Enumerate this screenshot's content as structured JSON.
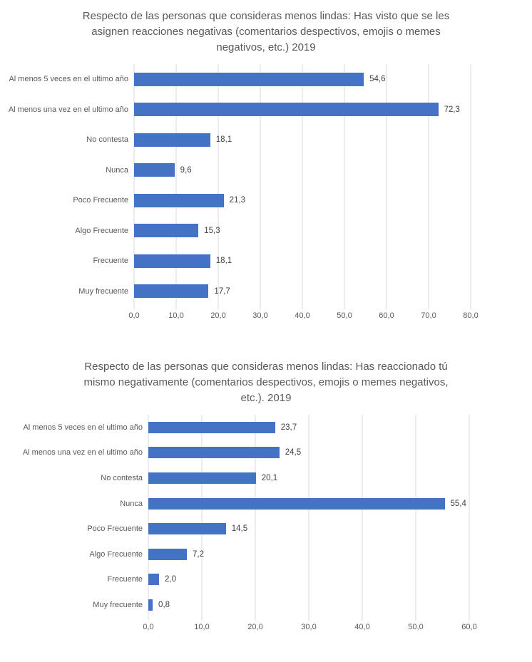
{
  "accent_color": "#4472C4",
  "gridline_color": "#d9d9d9",
  "text_color": "#595959",
  "chart_data": [
    {
      "type": "bar",
      "orientation": "horizontal",
      "title": "Respecto de las personas que consideras menos lindas: Has visto que se les asignen reacciones negativas (comentarios despectivos, emojis o memes negativos, etc.) 2019",
      "categories": [
        "Al menos 5 veces en el ultimo año",
        "Al menos una vez en el ultimo año",
        "No contesta",
        "Nunca",
        "Poco Frecuente",
        "Algo Frecuente",
        "Frecuente",
        "Muy frecuente"
      ],
      "values": [
        54.6,
        72.3,
        18.1,
        9.6,
        21.3,
        15.3,
        18.1,
        17.7
      ],
      "value_labels": [
        "54,6",
        "72,3",
        "18,1",
        "9,6",
        "21,3",
        "15,3",
        "18,1",
        "17,7"
      ],
      "xlim": [
        0,
        80
      ],
      "tick_step": 10,
      "x_tick_labels": [
        "0,0",
        "10,0",
        "20,0",
        "30,0",
        "40,0",
        "50,0",
        "60,0",
        "70,0",
        "80,0"
      ],
      "grid": true,
      "legend": "none",
      "bar_color": "#4472C4",
      "gridline_color": "#d9d9d9"
    },
    {
      "type": "bar",
      "orientation": "horizontal",
      "title": "Respecto de las personas que consideras menos lindas: Has reaccionado tú mismo negativamente (comentarios despectivos, emojis o memes negativos, etc.). 2019",
      "categories": [
        "Al menos 5 veces en el ultimo año",
        "Al menos una vez en el ultimo año",
        "No contesta",
        "Nunca",
        "Poco Frecuente",
        "Algo Frecuente",
        "Frecuente",
        "Muy frecuente"
      ],
      "values": [
        23.7,
        24.5,
        20.1,
        55.4,
        14.5,
        7.2,
        2.0,
        0.8
      ],
      "value_labels": [
        "23,7",
        "24,5",
        "20,1",
        "55,4",
        "14,5",
        "7,2",
        "2,0",
        "0,8"
      ],
      "xlim": [
        0,
        60
      ],
      "tick_step": 10,
      "x_tick_labels": [
        "0,0",
        "10,0",
        "20,0",
        "30,0",
        "40,0",
        "50,0",
        "60,0"
      ],
      "grid": true,
      "legend": "none",
      "bar_color": "#4472C4",
      "gridline_color": "#d9d9d9"
    }
  ]
}
